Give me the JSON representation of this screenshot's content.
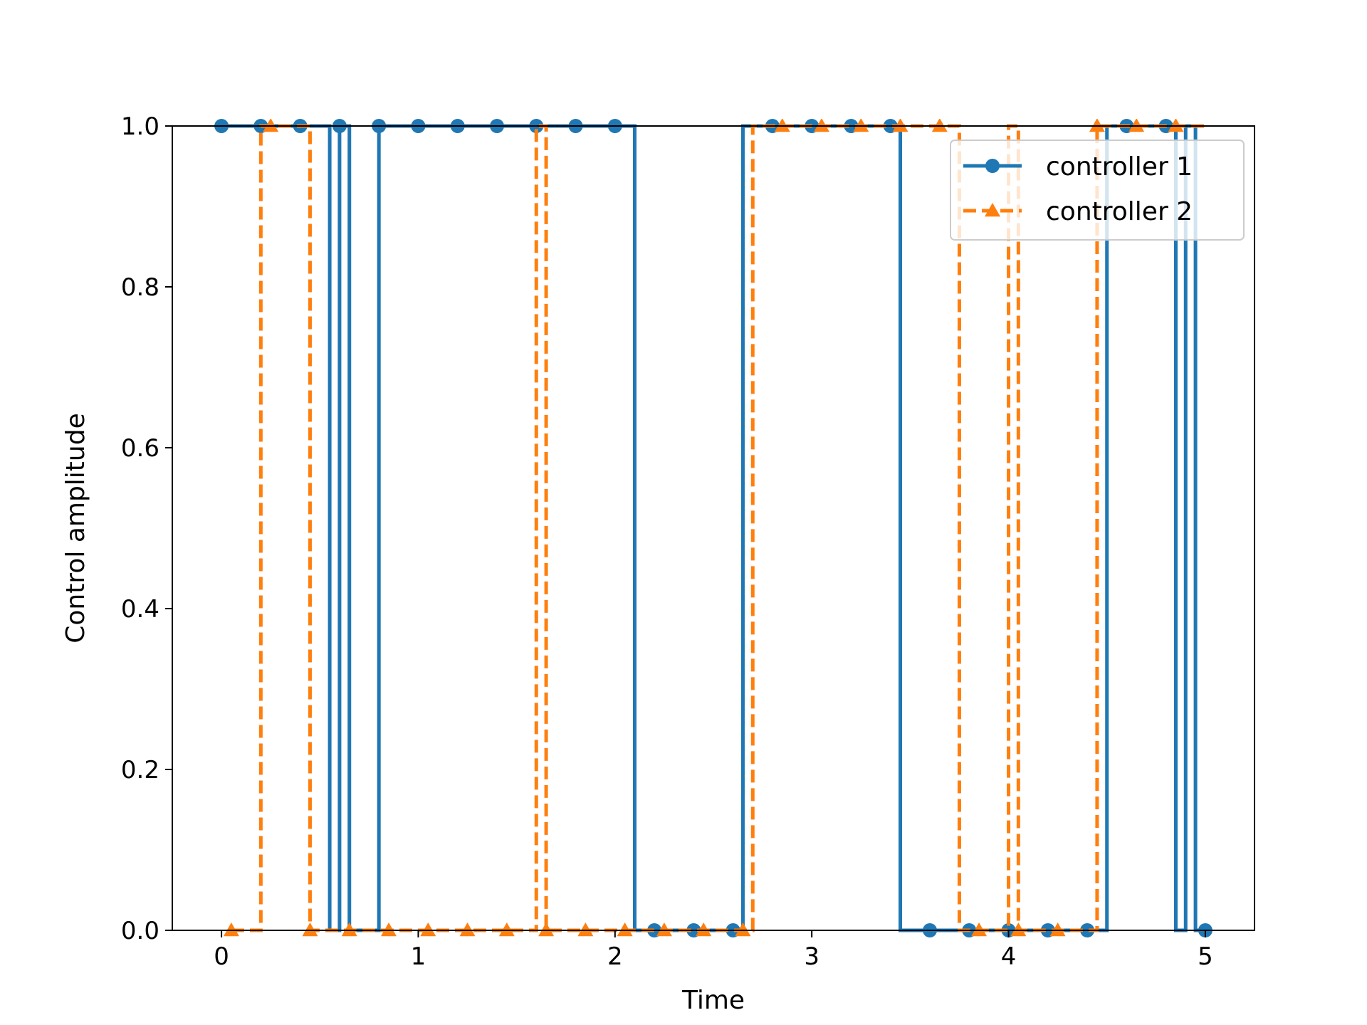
{
  "chart_data": {
    "type": "line",
    "title": "",
    "xlabel": "Time",
    "ylabel": "Control amplitude",
    "xlim": [
      -0.25,
      5.25
    ],
    "ylim": [
      0.0,
      1.0
    ],
    "xticks": [
      0,
      1,
      2,
      3,
      4,
      5
    ],
    "yticks": [
      0.0,
      0.2,
      0.4,
      0.6,
      0.8,
      1.0
    ],
    "xtick_labels": [
      "0",
      "1",
      "2",
      "3",
      "4",
      "5"
    ],
    "ytick_labels": [
      "0.0",
      "0.2",
      "0.4",
      "0.6",
      "0.8",
      "1.0"
    ],
    "grid": false,
    "legend_position": "top-right",
    "step": "post",
    "series": [
      {
        "name": "controller 1",
        "color": "#1f77b4",
        "linestyle": "solid",
        "marker": "circle",
        "x": [
          0.0,
          0.2,
          0.4,
          0.55,
          0.6,
          0.65,
          0.8,
          1.0,
          1.2,
          1.4,
          1.6,
          1.8,
          2.0,
          2.1,
          2.2,
          2.4,
          2.65,
          2.8,
          3.0,
          3.2,
          3.4,
          3.45,
          3.6,
          3.8,
          4.0,
          4.2,
          4.4,
          4.5,
          4.6,
          4.8,
          4.85,
          4.9,
          4.95,
          5.0
        ],
        "y": [
          1,
          1,
          1,
          0,
          1,
          0,
          1,
          1,
          1,
          1,
          1,
          1,
          1,
          0,
          0,
          0,
          1,
          1,
          1,
          1,
          1,
          0,
          0,
          0,
          0,
          0,
          0,
          1,
          1,
          1,
          0,
          1,
          0,
          0
        ],
        "markers_x": [
          0.0,
          0.2,
          0.4,
          0.6,
          0.8,
          1.0,
          1.2,
          1.4,
          1.6,
          1.8,
          2.0,
          2.2,
          2.4,
          2.6,
          2.8,
          3.0,
          3.2,
          3.4,
          3.6,
          3.8,
          4.0,
          4.2,
          4.4,
          4.6,
          4.8,
          5.0
        ]
      },
      {
        "name": "controller 2",
        "color": "#ff7f0e",
        "linestyle": "dashed",
        "marker": "triangle",
        "x": [
          0.05,
          0.2,
          0.45,
          1.6,
          1.65,
          2.7,
          3.75,
          4.0,
          4.05,
          4.45,
          5.0
        ],
        "y": [
          0,
          1,
          0,
          1,
          0,
          1,
          0,
          1,
          0,
          1,
          1
        ],
        "markers_x": [
          0.05,
          0.25,
          0.45,
          0.65,
          0.85,
          1.05,
          1.25,
          1.45,
          1.65,
          1.85,
          2.05,
          2.25,
          2.45,
          2.65,
          2.85,
          3.05,
          3.25,
          3.45,
          3.65,
          3.85,
          4.05,
          4.25,
          4.45,
          4.65,
          4.85
        ]
      }
    ]
  }
}
